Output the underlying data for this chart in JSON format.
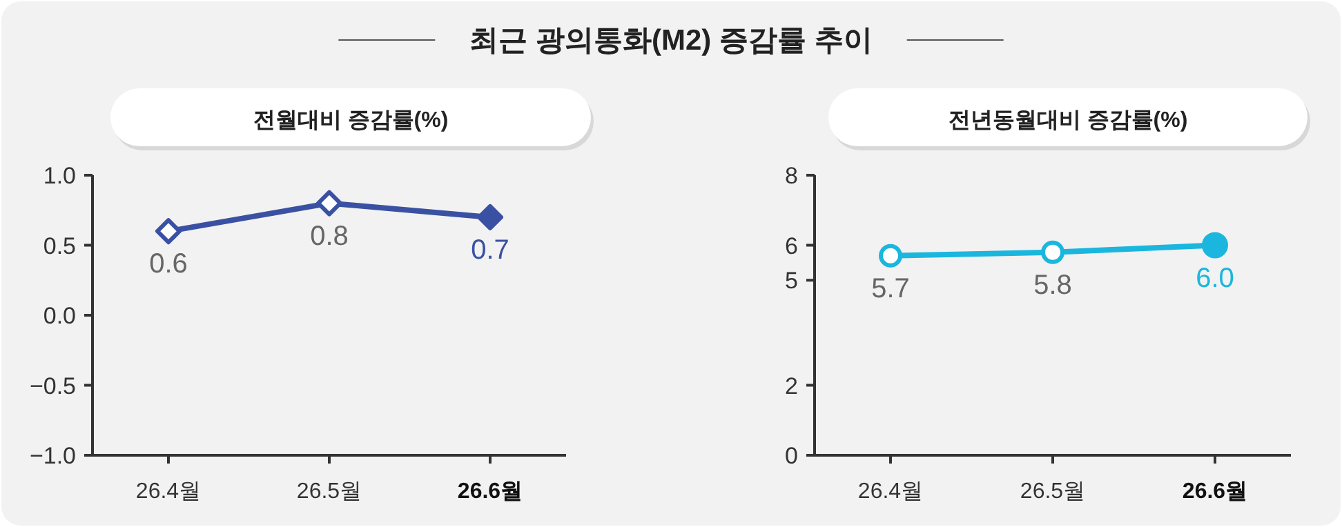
{
  "chart_data": [
    {
      "type": "line",
      "title": "최근 광의통화(M2) 증감률 추이",
      "subtitle": "전월대비 증감률(%)",
      "categories": [
        "26.4월",
        "26.5월",
        "26.6월"
      ],
      "series": [
        {
          "color": "#3a51a3",
          "values": [
            0.6,
            0.8,
            0.7
          ],
          "value_labels": [
            "0.6",
            "0.8",
            "0.7"
          ]
        }
      ],
      "ylim": [
        -1.0,
        1.0
      ],
      "yticks": [
        {
          "value": 1.0,
          "label": "1.0"
        },
        {
          "value": 0.5,
          "label": "0.5"
        },
        {
          "value": 0,
          "label": "0.0"
        },
        {
          "value": -0.5,
          "label": "−0.5"
        },
        {
          "value": -1.0,
          "label": "−1.0"
        }
      ],
      "marker": "diamond"
    },
    {
      "type": "line",
      "subtitle": "전년동월대비 증감률(%)",
      "categories": [
        "26.4월",
        "26.5월",
        "26.6월"
      ],
      "series": [
        {
          "color": "#1bb6de",
          "values": [
            5.7,
            5.8,
            6.0
          ],
          "value_labels": [
            "5.7",
            "5.8",
            "6.0"
          ]
        }
      ],
      "ylim": [
        0,
        8
      ],
      "yticks": [
        0,
        2,
        5,
        6,
        8
      ],
      "marker": "circle"
    }
  ]
}
